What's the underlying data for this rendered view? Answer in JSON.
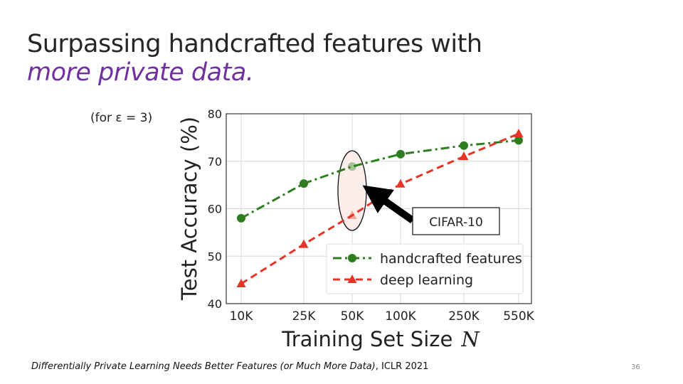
{
  "slide": {
    "title_line1": "Surpassing handcrafted features with",
    "title_line2": "more private data.",
    "epsilon_note": "(for ε = 3)",
    "citation_paper": "Differentially Private Learning Needs Better Features (or Much More Data)",
    "citation_venue": ", ICLR 2021",
    "page_number": "36"
  },
  "callout": {
    "label": "CIFAR-10",
    "highlighted_category": "50K"
  },
  "colors": {
    "handcrafted": "#2e7d1f",
    "deep": "#e53527",
    "highlight_fill": "#fbeeea",
    "plot_border": "#333333",
    "grid": "#d9d9d9"
  },
  "chart_data": {
    "type": "line",
    "xlabel": "Training Set Size",
    "xlabel_var": "N",
    "ylabel": "Test Accuracy (%)",
    "categories": [
      "10K",
      "25K",
      "50K",
      "100K",
      "250K",
      "550K"
    ],
    "ylim": [
      40,
      80
    ],
    "yticks": [
      40,
      50,
      60,
      70,
      80
    ],
    "grid": true,
    "legend_position": "bottom-right",
    "series": [
      {
        "name": "handcrafted features",
        "values": [
          58.0,
          65.3,
          68.9,
          71.5,
          73.3,
          74.4
        ],
        "marker": "circle",
        "line": "dash-dot",
        "color": "#2e7d1f"
      },
      {
        "name": "deep learning",
        "values": [
          44.2,
          52.5,
          58.6,
          65.2,
          71.0,
          75.8
        ],
        "marker": "triangle",
        "line": "dashed",
        "color": "#e53527"
      }
    ]
  }
}
